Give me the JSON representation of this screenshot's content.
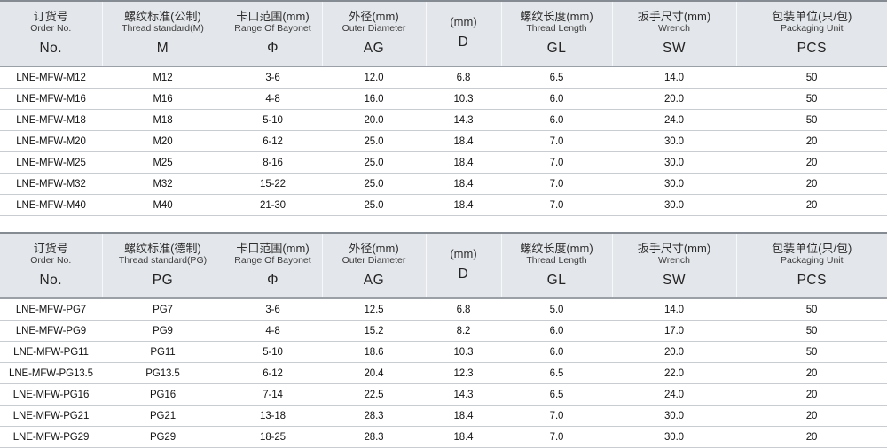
{
  "colors": {
    "header_bg": "#e3e6ea",
    "header_border_top": "#848b92",
    "header_border_bottom": "#9aa0a6",
    "row_divider": "#c9cdd1",
    "body_text": "#121212"
  },
  "table_metric": {
    "columns": [
      {
        "cn": "订货号",
        "en": "Order No.",
        "code": "No."
      },
      {
        "cn": "螺纹标准(公制)",
        "en": "Thread standard(M)",
        "code": "M"
      },
      {
        "cn": "卡口范围(mm)",
        "en": "Range Of Bayonet",
        "code": "Φ"
      },
      {
        "cn": "外径(mm)",
        "en": "Outer Diameter",
        "code": "AG"
      },
      {
        "cn": "(mm)",
        "en": "",
        "code": "D"
      },
      {
        "cn": "螺纹长度(mm)",
        "en": "Thread Length",
        "code": "GL"
      },
      {
        "cn": "扳手尺寸(mm)",
        "en": "Wrench",
        "code": "SW"
      },
      {
        "cn": "包装单位(只/包)",
        "en": "Packaging Unit",
        "code": "PCS"
      }
    ],
    "rows": [
      [
        "LNE-MFW-M12",
        "M12",
        "3-6",
        "12.0",
        "6.8",
        "6.5",
        "14.0",
        "50"
      ],
      [
        "LNE-MFW-M16",
        "M16",
        "4-8",
        "16.0",
        "10.3",
        "6.0",
        "20.0",
        "50"
      ],
      [
        "LNE-MFW-M18",
        "M18",
        "5-10",
        "20.0",
        "14.3",
        "6.0",
        "24.0",
        "50"
      ],
      [
        "LNE-MFW-M20",
        "M20",
        "6-12",
        "25.0",
        "18.4",
        "7.0",
        "30.0",
        "20"
      ],
      [
        "LNE-MFW-M25",
        "M25",
        "8-16",
        "25.0",
        "18.4",
        "7.0",
        "30.0",
        "20"
      ],
      [
        "LNE-MFW-M32",
        "M32",
        "15-22",
        "25.0",
        "18.4",
        "7.0",
        "30.0",
        "20"
      ],
      [
        "LNE-MFW-M40",
        "M40",
        "21-30",
        "25.0",
        "18.4",
        "7.0",
        "30.0",
        "20"
      ]
    ]
  },
  "table_pg": {
    "columns": [
      {
        "cn": "订货号",
        "en": "Order No.",
        "code": "No."
      },
      {
        "cn": "螺纹标准(德制)",
        "en": "Thread standard(PG)",
        "code": "PG"
      },
      {
        "cn": "卡口范围(mm)",
        "en": "Range Of Bayonet",
        "code": "Φ"
      },
      {
        "cn": "外径(mm)",
        "en": "Outer Diameter",
        "code": "AG"
      },
      {
        "cn": "(mm)",
        "en": "",
        "code": "D"
      },
      {
        "cn": "螺纹长度(mm)",
        "en": "Thread Length",
        "code": "GL"
      },
      {
        "cn": "扳手尺寸(mm)",
        "en": "Wrench",
        "code": "SW"
      },
      {
        "cn": "包装单位(只/包)",
        "en": "Packaging Unit",
        "code": "PCS"
      }
    ],
    "rows": [
      [
        "LNE-MFW-PG7",
        "PG7",
        "3-6",
        "12.5",
        "6.8",
        "5.0",
        "14.0",
        "50"
      ],
      [
        "LNE-MFW-PG9",
        "PG9",
        "4-8",
        "15.2",
        "8.2",
        "6.0",
        "17.0",
        "50"
      ],
      [
        "LNE-MFW-PG11",
        "PG11",
        "5-10",
        "18.6",
        "10.3",
        "6.0",
        "20.0",
        "50"
      ],
      [
        "LNE-MFW-PG13.5",
        "PG13.5",
        "6-12",
        "20.4",
        "12.3",
        "6.5",
        "22.0",
        "20"
      ],
      [
        "LNE-MFW-PG16",
        "PG16",
        "7-14",
        "22.5",
        "14.3",
        "6.5",
        "24.0",
        "20"
      ],
      [
        "LNE-MFW-PG21",
        "PG21",
        "13-18",
        "28.3",
        "18.4",
        "7.0",
        "30.0",
        "20"
      ],
      [
        "LNE-MFW-PG29",
        "PG29",
        "18-25",
        "28.3",
        "18.4",
        "7.0",
        "30.0",
        "20"
      ]
    ]
  }
}
